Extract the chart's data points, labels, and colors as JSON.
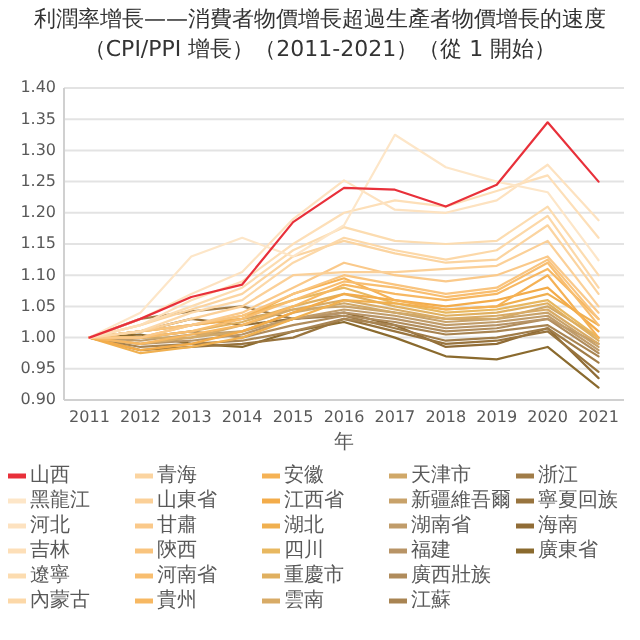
{
  "chart_data": {
    "type": "line",
    "title": "利潤率增長——消費者物價增長超過生產者物價增長的速度（CPI/PPI 增長）（2011-2021）（從 1 開始）",
    "xlabel": "年",
    "categories": [
      "2011",
      "2012",
      "2013",
      "2014",
      "2015",
      "2016",
      "2017",
      "2018",
      "2019",
      "2020",
      "2021"
    ],
    "ylim": [
      0.9,
      1.4
    ],
    "yticks": [
      {
        "value": 0.9,
        "label": "0.90"
      },
      {
        "value": 0.95,
        "label": "0.95"
      },
      {
        "value": 1.0,
        "label": "1.00"
      },
      {
        "value": 1.05,
        "label": "1.05"
      },
      {
        "value": 1.1,
        "label": "1.10"
      },
      {
        "value": 1.15,
        "label": "1.15"
      },
      {
        "value": 1.2,
        "label": "1.20"
      },
      {
        "value": 1.25,
        "label": "1.25"
      },
      {
        "value": 1.3,
        "label": "1.30"
      },
      {
        "value": 1.35,
        "label": "1.35"
      },
      {
        "value": 1.4,
        "label": "1.40"
      }
    ],
    "grid": "y",
    "legend": "bottom",
    "series": [
      {
        "name": "山西",
        "color": "#e8303a",
        "values": [
          1,
          1.03,
          1.065,
          1.085,
          1.185,
          1.24,
          1.237,
          1.21,
          1.245,
          1.345,
          1.25
        ]
      },
      {
        "name": "黑龍江",
        "color": "#fde6c8",
        "values": [
          1,
          1.04,
          1.13,
          1.16,
          1.13,
          1.18,
          1.325,
          1.273,
          1.25,
          1.233,
          1.124
        ]
      },
      {
        "name": "河北",
        "color": "#fde2c0",
        "values": [
          1,
          1.03,
          1.07,
          1.105,
          1.19,
          1.252,
          1.205,
          1.2,
          1.22,
          1.277,
          1.188
        ]
      },
      {
        "name": "吉林",
        "color": "#fddfb8",
        "values": [
          1,
          1.02,
          1.06,
          1.09,
          1.15,
          1.2,
          1.22,
          1.21,
          1.235,
          1.26,
          1.16
        ]
      },
      {
        "name": "遼寧",
        "color": "#fcdcb0",
        "values": [
          1,
          1.02,
          1.05,
          1.08,
          1.14,
          1.177,
          1.155,
          1.15,
          1.155,
          1.21,
          1.1
        ]
      },
      {
        "name": "內蒙古",
        "color": "#fcd8a8",
        "values": [
          1,
          1.01,
          1.04,
          1.06,
          1.12,
          1.16,
          1.14,
          1.125,
          1.14,
          1.195,
          1.08
        ]
      },
      {
        "name": "青海",
        "color": "#fbd4a0",
        "values": [
          1,
          1.02,
          1.045,
          1.07,
          1.13,
          1.155,
          1.135,
          1.12,
          1.125,
          1.18,
          1.07
        ]
      },
      {
        "name": "山東省",
        "color": "#fbd098",
        "values": [
          1,
          1.01,
          1.03,
          1.05,
          1.1,
          1.105,
          1.105,
          1.11,
          1.115,
          1.155,
          1.05
        ]
      },
      {
        "name": "甘肅",
        "color": "#fac98a",
        "values": [
          1,
          1.0,
          1.02,
          1.04,
          1.08,
          1.12,
          1.1,
          1.09,
          1.1,
          1.13,
          1.04
        ]
      },
      {
        "name": "陝西",
        "color": "#f9c47e",
        "values": [
          1,
          1.01,
          1.02,
          1.035,
          1.07,
          1.1,
          1.085,
          1.07,
          1.08,
          1.125,
          1.03
        ]
      },
      {
        "name": "河南省",
        "color": "#f8be70",
        "values": [
          1,
          1.0,
          1.01,
          1.03,
          1.06,
          1.09,
          1.08,
          1.065,
          1.075,
          1.12,
          1.02
        ]
      },
      {
        "name": "貴州",
        "color": "#f7b862",
        "values": [
          1,
          0.99,
          1.005,
          1.02,
          1.05,
          1.085,
          1.07,
          1.06,
          1.07,
          1.11,
          1.03
        ]
      },
      {
        "name": "安徽",
        "color": "#f5b255",
        "values": [
          1,
          1.0,
          1.02,
          1.03,
          1.07,
          1.095,
          1.06,
          1.045,
          1.05,
          1.1,
          1.0
        ]
      },
      {
        "name": "江西省",
        "color": "#f3ac4a",
        "values": [
          1,
          0.98,
          0.99,
          1.01,
          1.04,
          1.07,
          1.06,
          1.05,
          1.06,
          1.08,
          1.01
        ]
      },
      {
        "name": "湖北",
        "color": "#f0b050",
        "values": [
          1,
          0.975,
          0.985,
          1.0,
          1.03,
          1.06,
          1.055,
          1.045,
          1.05,
          1.07,
          1.02
        ]
      },
      {
        "name": "四川",
        "color": "#e8b860",
        "values": [
          1,
          1.01,
          1.02,
          1.035,
          1.06,
          1.08,
          1.055,
          1.04,
          1.045,
          1.06,
          1.0
        ]
      },
      {
        "name": "重慶市",
        "color": "#e0b060",
        "values": [
          1,
          1.0,
          1.01,
          1.025,
          1.05,
          1.07,
          1.05,
          1.035,
          1.04,
          1.055,
          0.995
        ]
      },
      {
        "name": "雲南",
        "color": "#d8ab66",
        "values": [
          1,
          0.99,
          1.0,
          1.02,
          1.045,
          1.06,
          1.045,
          1.03,
          1.035,
          1.045,
          0.99
        ]
      },
      {
        "name": "天津市",
        "color": "#d0a868",
        "values": [
          1,
          1.0,
          1.0,
          1.01,
          1.04,
          1.055,
          1.04,
          1.03,
          1.03,
          1.05,
          1.0
        ]
      },
      {
        "name": "新疆維吾爾",
        "color": "#c8a26a",
        "values": [
          1,
          1.01,
          1.02,
          1.03,
          1.045,
          1.05,
          1.04,
          1.025,
          1.03,
          1.04,
          0.985
        ]
      },
      {
        "name": "湖南省",
        "color": "#c09c6a",
        "values": [
          1,
          0.995,
          1.005,
          1.01,
          1.03,
          1.045,
          1.035,
          1.02,
          1.025,
          1.035,
          0.98
        ]
      },
      {
        "name": "福建",
        "color": "#b89466",
        "values": [
          1,
          0.99,
          0.995,
          1.005,
          1.03,
          1.04,
          1.03,
          1.015,
          1.02,
          1.03,
          0.99
        ]
      },
      {
        "name": "廣西壯族",
        "color": "#b08c5c",
        "values": [
          1,
          1.0,
          1.01,
          1.0,
          1.02,
          1.035,
          1.025,
          1.01,
          1.015,
          1.03,
          0.975
        ]
      },
      {
        "name": "江蘇",
        "color": "#a88452",
        "values": [
          1,
          0.985,
          0.99,
          0.995,
          1.01,
          1.03,
          1.02,
          1.005,
          1.01,
          1.02,
          0.97
        ]
      },
      {
        "name": "浙江",
        "color": "#a07c48",
        "values": [
          1,
          1.03,
          1.042,
          1.05,
          1.03,
          1.035,
          1.015,
          0.995,
          1.0,
          1.015,
          0.96
        ]
      },
      {
        "name": "寧夏回族",
        "color": "#98743e",
        "values": [
          1,
          0.98,
          0.985,
          0.99,
          1.0,
          1.03,
          1.01,
          0.99,
          0.995,
          1.01,
          0.945
        ]
      },
      {
        "name": "海南",
        "color": "#906c36",
        "values": [
          1,
          1.01,
          1.03,
          1.02,
          1.03,
          1.04,
          1.02,
          0.985,
          0.99,
          1.015,
          0.935
        ]
      },
      {
        "name": "廣東省",
        "color": "#8a6a2e",
        "values": [
          1,
          1.005,
          0.99,
          0.985,
          1.01,
          1.025,
          1.0,
          0.97,
          0.965,
          0.985,
          0.92
        ]
      }
    ]
  }
}
